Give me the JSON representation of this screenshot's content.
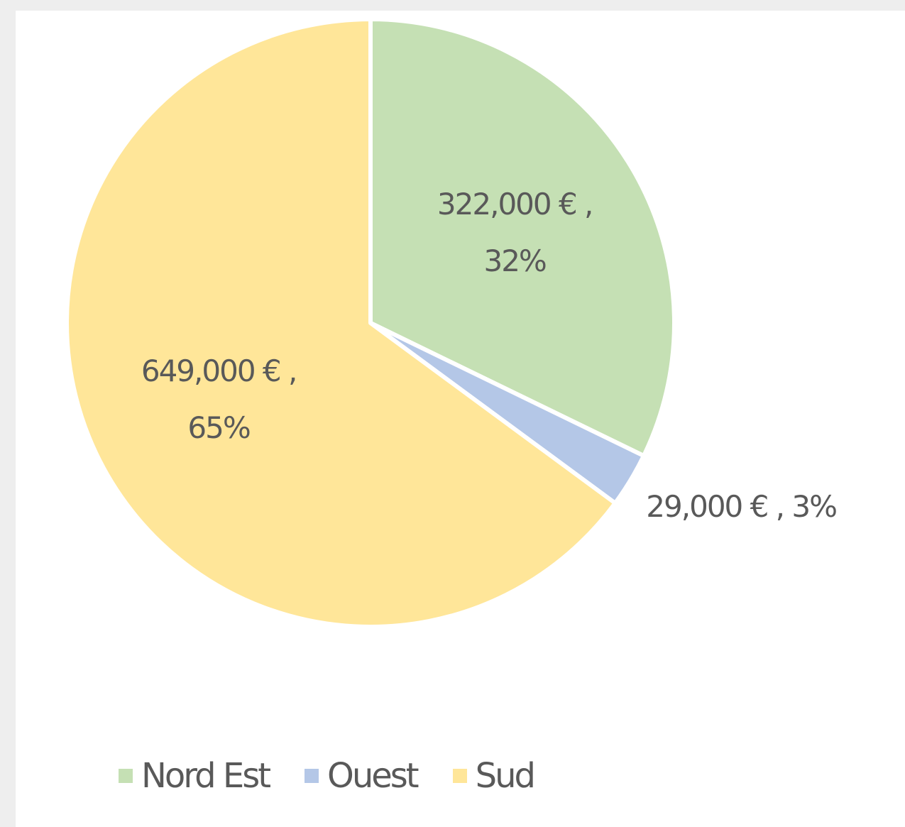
{
  "chart_data": {
    "type": "pie",
    "categories": [
      "Nord Est",
      "Ouest",
      "Sud"
    ],
    "values": [
      322000,
      29000,
      649000
    ],
    "value_labels": [
      "322,000 € , 32%",
      "29,000 € , 3%",
      "649,000 € , 65%"
    ],
    "colors": [
      "#c5e0b4",
      "#b4c7e7",
      "#ffe699"
    ],
    "legend": "bottom"
  }
}
